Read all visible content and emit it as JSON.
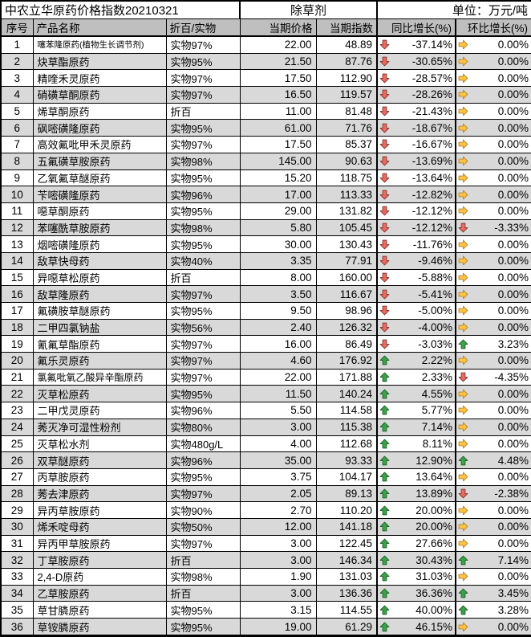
{
  "chart_data": {
    "type": "table",
    "title": "中农立华原药价格指数20210321",
    "category": "除草剂",
    "unit": "单位：万元/吨",
    "columns": [
      "序号",
      "产品名称",
      "折百/实物",
      "当期价格",
      "当期指数",
      "同比增长(%)",
      "环比增长(%)"
    ],
    "trend_colors": {
      "up": {
        "fill": "#3EA049",
        "stroke": "#1E672B"
      },
      "flat": {
        "fill": "#FFC446",
        "stroke": "#B8862B"
      },
      "down": {
        "fill": "#E66B60",
        "stroke": "#8E3A34"
      }
    },
    "trend_icon_names": {
      "up": "up-arrow-icon",
      "flat": "right-arrow-icon",
      "down": "down-arrow-icon"
    },
    "rows": [
      {
        "no": "1",
        "name": "噻苯隆原药(植物生长调节剂)",
        "spec": "实物97%",
        "price": "22.00",
        "index": "48.89",
        "yoy": "-37.14%",
        "yoy_trend": "down",
        "mom": "0.00%",
        "mom_trend": "flat"
      },
      {
        "no": "2",
        "name": "炔草酯原药",
        "spec": "实物95%",
        "price": "21.50",
        "index": "87.76",
        "yoy": "-30.65%",
        "yoy_trend": "down",
        "mom": "0.00%",
        "mom_trend": "flat"
      },
      {
        "no": "3",
        "name": "精喹禾灵原药",
        "spec": "实物97%",
        "price": "17.50",
        "index": "112.90",
        "yoy": "-28.57%",
        "yoy_trend": "down",
        "mom": "0.00%",
        "mom_trend": "flat"
      },
      {
        "no": "4",
        "name": "硝磺草酮原药",
        "spec": "实物97%",
        "price": "16.50",
        "index": "119.57",
        "yoy": "-28.26%",
        "yoy_trend": "down",
        "mom": "0.00%",
        "mom_trend": "flat"
      },
      {
        "no": "5",
        "name": "烯草酮原药",
        "spec": "折百",
        "price": "11.00",
        "index": "81.48",
        "yoy": "-21.43%",
        "yoy_trend": "down",
        "mom": "0.00%",
        "mom_trend": "flat"
      },
      {
        "no": "6",
        "name": "砜嘧磺隆原药",
        "spec": "实物95%",
        "price": "61.00",
        "index": "71.76",
        "yoy": "-18.67%",
        "yoy_trend": "down",
        "mom": "0.00%",
        "mom_trend": "flat"
      },
      {
        "no": "7",
        "name": "高效氟吡甲禾灵原药",
        "spec": "实物97%",
        "price": "17.50",
        "index": "85.37",
        "yoy": "-16.67%",
        "yoy_trend": "down",
        "mom": "0.00%",
        "mom_trend": "flat"
      },
      {
        "no": "8",
        "name": "五氟磺草胺原药",
        "spec": "实物98%",
        "price": "145.00",
        "index": "90.63",
        "yoy": "-13.69%",
        "yoy_trend": "down",
        "mom": "0.00%",
        "mom_trend": "flat"
      },
      {
        "no": "9",
        "name": "乙氧氟草醚原药",
        "spec": "实物95%",
        "price": "15.20",
        "index": "118.75",
        "yoy": "-13.64%",
        "yoy_trend": "down",
        "mom": "0.00%",
        "mom_trend": "flat"
      },
      {
        "no": "10",
        "name": "苄嘧磺隆原药",
        "spec": "实物96%",
        "price": "17.00",
        "index": "113.33",
        "yoy": "-12.82%",
        "yoy_trend": "down",
        "mom": "0.00%",
        "mom_trend": "flat"
      },
      {
        "no": "11",
        "name": "噁草酮原药",
        "spec": "实物95%",
        "price": "29.00",
        "index": "131.82",
        "yoy": "-12.12%",
        "yoy_trend": "down",
        "mom": "0.00%",
        "mom_trend": "flat"
      },
      {
        "no": "12",
        "name": "苯噻酰草胺原药",
        "spec": "实物98%",
        "price": "5.80",
        "index": "105.45",
        "yoy": "-12.12%",
        "yoy_trend": "down",
        "mom": "-3.33%",
        "mom_trend": "down"
      },
      {
        "no": "13",
        "name": "烟嘧磺隆原药",
        "spec": "实物95%",
        "price": "30.00",
        "index": "130.43",
        "yoy": "-11.76%",
        "yoy_trend": "down",
        "mom": "0.00%",
        "mom_trend": "flat"
      },
      {
        "no": "14",
        "name": "敌草快母药",
        "spec": "实物40%",
        "price": "3.35",
        "index": "77.91",
        "yoy": "-9.46%",
        "yoy_trend": "down",
        "mom": "0.00%",
        "mom_trend": "flat"
      },
      {
        "no": "15",
        "name": "异噁草松原药",
        "spec": "折百",
        "price": "8.00",
        "index": "160.00",
        "yoy": "-5.88%",
        "yoy_trend": "down",
        "mom": "0.00%",
        "mom_trend": "flat"
      },
      {
        "no": "16",
        "name": "敌草隆原药",
        "spec": "实物97%",
        "price": "3.50",
        "index": "116.67",
        "yoy": "-5.41%",
        "yoy_trend": "down",
        "mom": "0.00%",
        "mom_trend": "flat"
      },
      {
        "no": "17",
        "name": "氟磺胺草醚原药",
        "spec": "实物95%",
        "price": "9.50",
        "index": "98.96",
        "yoy": "-5.00%",
        "yoy_trend": "down",
        "mom": "0.00%",
        "mom_trend": "flat"
      },
      {
        "no": "18",
        "name": "二甲四氯钠盐",
        "spec": "实物56%",
        "price": "2.40",
        "index": "126.32",
        "yoy": "-4.00%",
        "yoy_trend": "down",
        "mom": "0.00%",
        "mom_trend": "flat"
      },
      {
        "no": "19",
        "name": "氰氟草酯原药",
        "spec": "实物97%",
        "price": "16.00",
        "index": "86.49",
        "yoy": "-3.03%",
        "yoy_trend": "down",
        "mom": "3.23%",
        "mom_trend": "up"
      },
      {
        "no": "20",
        "name": "氟乐灵原药",
        "spec": "实物97%",
        "price": "4.60",
        "index": "176.92",
        "yoy": "2.22%",
        "yoy_trend": "up",
        "mom": "0.00%",
        "mom_trend": "flat"
      },
      {
        "no": "21",
        "name": "氯氟吡氧乙酸异辛酯原药",
        "spec": "实物97%",
        "price": "22.00",
        "index": "171.88",
        "yoy": "2.33%",
        "yoy_trend": "up",
        "mom": "-4.35%",
        "mom_trend": "down"
      },
      {
        "no": "22",
        "name": "灭草松原药",
        "spec": "实物95%",
        "price": "11.50",
        "index": "140.24",
        "yoy": "4.55%",
        "yoy_trend": "up",
        "mom": "0.00%",
        "mom_trend": "flat"
      },
      {
        "no": "23",
        "name": "二甲戊灵原药",
        "spec": "实物96%",
        "price": "5.50",
        "index": "114.58",
        "yoy": "5.77%",
        "yoy_trend": "up",
        "mom": "0.00%",
        "mom_trend": "flat"
      },
      {
        "no": "24",
        "name": "莠灭净可湿性粉剂",
        "spec": "实物80%",
        "price": "3.00",
        "index": "115.38",
        "yoy": "7.14%",
        "yoy_trend": "up",
        "mom": "0.00%",
        "mom_trend": "flat"
      },
      {
        "no": "25",
        "name": "灭草松水剂",
        "spec": "实物480g/L",
        "price": "4.00",
        "index": "112.68",
        "yoy": "8.11%",
        "yoy_trend": "up",
        "mom": "0.00%",
        "mom_trend": "flat"
      },
      {
        "no": "26",
        "name": "双草醚原药",
        "spec": "实物96%",
        "price": "35.00",
        "index": "93.33",
        "yoy": "12.90%",
        "yoy_trend": "up",
        "mom": "4.48%",
        "mom_trend": "up"
      },
      {
        "no": "27",
        "name": "丙草胺原药",
        "spec": "实物95%",
        "price": "3.75",
        "index": "104.17",
        "yoy": "13.64%",
        "yoy_trend": "up",
        "mom": "0.00%",
        "mom_trend": "flat"
      },
      {
        "no": "28",
        "name": "莠去津原药",
        "spec": "实物97%",
        "price": "2.05",
        "index": "89.13",
        "yoy": "13.89%",
        "yoy_trend": "up",
        "mom": "-2.38%",
        "mom_trend": "down"
      },
      {
        "no": "29",
        "name": "异丙草胺原药",
        "spec": "实物90%",
        "price": "2.70",
        "index": "110.20",
        "yoy": "20.00%",
        "yoy_trend": "up",
        "mom": "0.00%",
        "mom_trend": "flat"
      },
      {
        "no": "30",
        "name": "烯禾啶母药",
        "spec": "实物50%",
        "price": "12.00",
        "index": "141.18",
        "yoy": "20.00%",
        "yoy_trend": "up",
        "mom": "0.00%",
        "mom_trend": "flat"
      },
      {
        "no": "31",
        "name": "异丙甲草胺原药",
        "spec": "实物97%",
        "price": "3.00",
        "index": "122.45",
        "yoy": "27.66%",
        "yoy_trend": "up",
        "mom": "0.00%",
        "mom_trend": "flat"
      },
      {
        "no": "32",
        "name": "丁草胺原药",
        "spec": "折百",
        "price": "3.00",
        "index": "146.34",
        "yoy": "30.43%",
        "yoy_trend": "up",
        "mom": "7.14%",
        "mom_trend": "up"
      },
      {
        "no": "33",
        "name": "2,4-D原药",
        "spec": "实物98%",
        "price": "1.90",
        "index": "131.03",
        "yoy": "31.03%",
        "yoy_trend": "up",
        "mom": "0.00%",
        "mom_trend": "flat"
      },
      {
        "no": "34",
        "name": "乙草胺原药",
        "spec": "折百",
        "price": "3.00",
        "index": "136.36",
        "yoy": "36.36%",
        "yoy_trend": "up",
        "mom": "3.45%",
        "mom_trend": "up"
      },
      {
        "no": "35",
        "name": "草甘膦原药",
        "spec": "实物95%",
        "price": "3.15",
        "index": "114.55",
        "yoy": "40.00%",
        "yoy_trend": "up",
        "mom": "3.28%",
        "mom_trend": "up"
      },
      {
        "no": "36",
        "name": "草铵膦原药",
        "spec": "实物95%",
        "price": "19.00",
        "index": "61.29",
        "yoy": "46.15%",
        "yoy_trend": "up",
        "mom": "0.00%",
        "mom_trend": "flat"
      }
    ]
  }
}
